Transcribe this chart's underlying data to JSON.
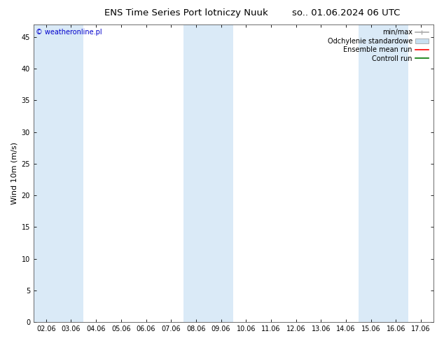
{
  "title_left": "ENS Time Series Port lotniczy Nuuk",
  "title_right": "so.. 01.06.2024 06 UTC",
  "ylabel": "Wind 10m (m/s)",
  "ylim": [
    0,
    47
  ],
  "yticks": [
    0,
    5,
    10,
    15,
    20,
    25,
    30,
    35,
    40,
    45
  ],
  "x_labels": [
    "02.06",
    "03.06",
    "04.06",
    "05.06",
    "06.06",
    "07.06",
    "08.06",
    "09.06",
    "10.06",
    "11.06",
    "12.06",
    "13.06",
    "14.06",
    "15.06",
    "16.06",
    "17.06"
  ],
  "shaded_band_indices": [
    0,
    1,
    6,
    7,
    13,
    14
  ],
  "band_color": "#daeaf7",
  "bg_color": "#ffffff",
  "plot_bg_color": "#ffffff",
  "copyright_text": "© weatheronline.pl",
  "copyright_color": "#0000cc",
  "legend_items": [
    {
      "label": "min/max",
      "color": "#aaaaaa",
      "type": "errbar"
    },
    {
      "label": "Odchylenie standardowe",
      "color": "#c8dff0",
      "type": "fill"
    },
    {
      "label": "Ensemble mean run",
      "color": "#ff0000",
      "type": "line"
    },
    {
      "label": "Controll run",
      "color": "#007700",
      "type": "line"
    }
  ],
  "title_fontsize": 9.5,
  "ylabel_fontsize": 8,
  "tick_fontsize": 7,
  "legend_fontsize": 7,
  "copyright_fontsize": 7,
  "figsize": [
    6.34,
    4.9
  ],
  "dpi": 100
}
